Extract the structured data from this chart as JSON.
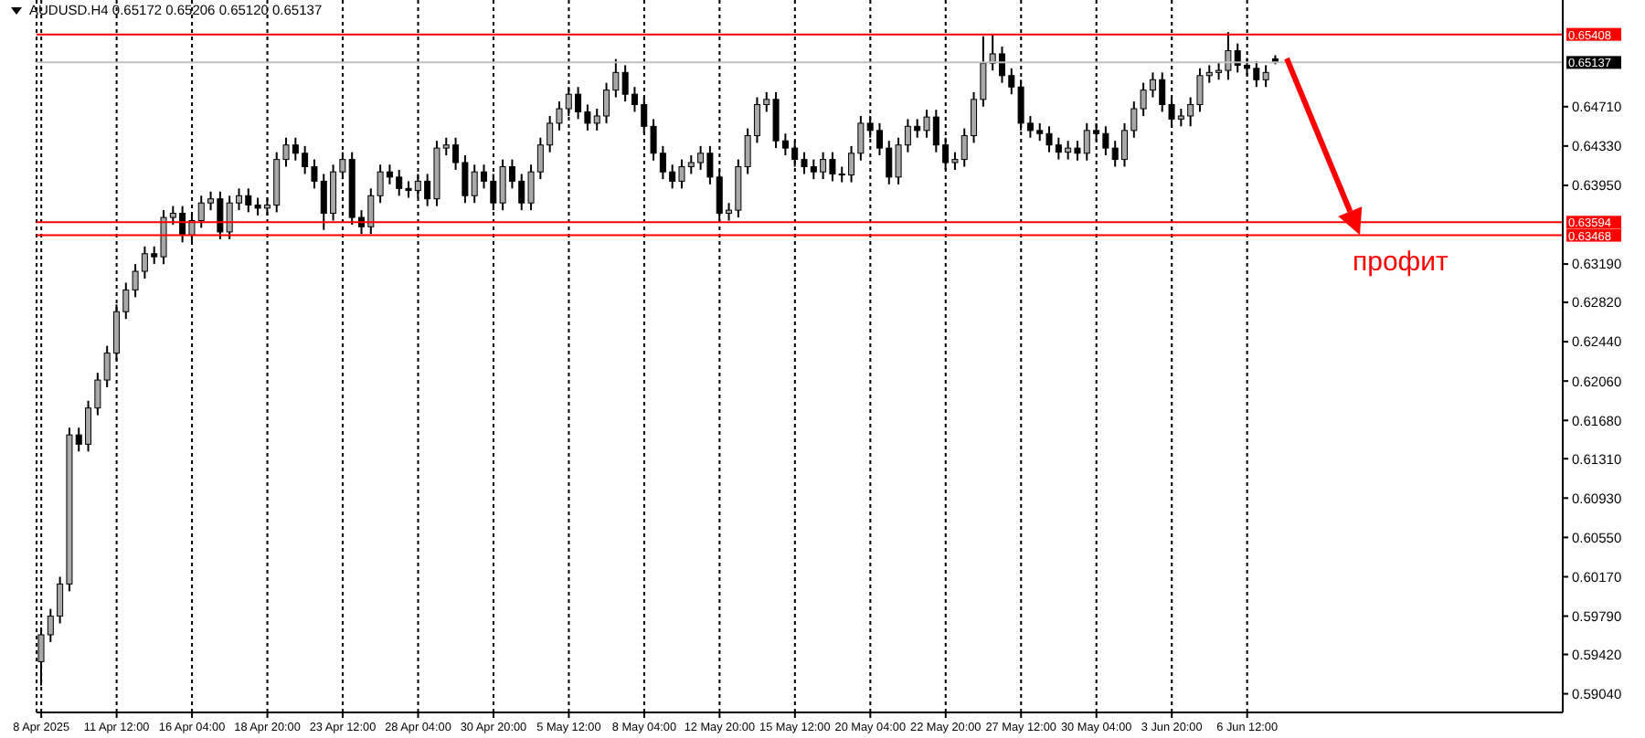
{
  "chart_data": {
    "type": "candlestick",
    "title": "AUDUSD.H4 0.65172 0.65206 0.65120 0.65137",
    "categories": [
      "8 Apr 2025",
      null,
      null,
      null,
      null,
      null,
      null,
      null,
      "11 Apr 12:00",
      null,
      null,
      null,
      null,
      null,
      null,
      null,
      "16 Apr 04:00",
      null,
      null,
      null,
      null,
      null,
      null,
      null,
      "18 Apr 20:00",
      null,
      null,
      null,
      null,
      null,
      null,
      null,
      "23 Apr 12:00",
      null,
      null,
      null,
      null,
      null,
      null,
      null,
      "28 Apr 04:00",
      null,
      null,
      null,
      null,
      null,
      null,
      null,
      "30 Apr 20:00",
      null,
      null,
      null,
      null,
      null,
      null,
      null,
      "5 May 12:00",
      null,
      null,
      null,
      null,
      null,
      null,
      null,
      "8 May 04:00",
      null,
      null,
      null,
      null,
      null,
      null,
      null,
      "12 May 20:00",
      null,
      null,
      null,
      null,
      null,
      null,
      null,
      "15 May 12:00",
      null,
      null,
      null,
      null,
      null,
      null,
      null,
      "20 May 04:00",
      null,
      null,
      null,
      null,
      null,
      null,
      null,
      "22 May 20:00",
      null,
      null,
      null,
      null,
      null,
      null,
      null,
      "27 May 12:00",
      null,
      null,
      null,
      null,
      null,
      null,
      null,
      "30 May 04:00",
      null,
      null,
      null,
      null,
      null,
      null,
      null,
      "3 Jun 20:00",
      null,
      null,
      null,
      null,
      null,
      null,
      null,
      "6 Jun 12:00",
      null,
      null,
      null,
      null,
      null,
      null,
      null,
      null,
      null,
      null,
      null,
      null,
      null,
      null,
      null,
      null,
      null,
      null,
      null,
      null,
      null,
      null,
      null,
      null,
      null,
      null,
      null,
      null,
      null,
      null,
      null,
      null,
      null
    ],
    "ohlc": [
      [
        0.5935,
        0.5968,
        0.5912,
        0.5961
      ],
      [
        0.5961,
        0.5986,
        0.5954,
        0.5979
      ],
      [
        0.5979,
        0.6017,
        0.5972,
        0.601
      ],
      [
        0.601,
        0.6161,
        0.6003,
        0.6154
      ],
      [
        0.6154,
        0.6161,
        0.6138,
        0.6145
      ],
      [
        0.6145,
        0.6187,
        0.6138,
        0.618
      ],
      [
        0.618,
        0.6214,
        0.6173,
        0.6207
      ],
      [
        0.6207,
        0.624,
        0.62,
        0.6233
      ],
      [
        0.6233,
        0.628,
        0.6226,
        0.6273
      ],
      [
        0.6273,
        0.6301,
        0.6266,
        0.6294
      ],
      [
        0.6294,
        0.6319,
        0.6287,
        0.6312
      ],
      [
        0.6312,
        0.6336,
        0.6305,
        0.6329
      ],
      [
        0.6329,
        0.6336,
        0.6319,
        0.6326
      ],
      [
        0.6326,
        0.6371,
        0.6319,
        0.6364
      ],
      [
        0.6364,
        0.6375,
        0.6357,
        0.6368
      ],
      [
        0.6368,
        0.6375,
        0.634,
        0.6347
      ],
      [
        0.6347,
        0.6368,
        0.634,
        0.6361
      ],
      [
        0.6361,
        0.6385,
        0.6354,
        0.6378
      ],
      [
        0.6378,
        0.6389,
        0.6371,
        0.6382
      ],
      [
        0.6382,
        0.6389,
        0.6343,
        0.635
      ],
      [
        0.635,
        0.6385,
        0.6343,
        0.6378
      ],
      [
        0.6378,
        0.6392,
        0.6371,
        0.6385
      ],
      [
        0.6385,
        0.6392,
        0.6369,
        0.6376
      ],
      [
        0.6376,
        0.6383,
        0.6366,
        0.6373
      ],
      [
        0.6373,
        0.6383,
        0.6366,
        0.6376
      ],
      [
        0.6376,
        0.6427,
        0.6369,
        0.642
      ],
      [
        0.642,
        0.6441,
        0.6413,
        0.6434
      ],
      [
        0.6434,
        0.6441,
        0.6419,
        0.6426
      ],
      [
        0.6426,
        0.6433,
        0.6406,
        0.6413
      ],
      [
        0.6413,
        0.642,
        0.6392,
        0.6399
      ],
      [
        0.6399,
        0.6406,
        0.6352,
        0.6368
      ],
      [
        0.6368,
        0.6415,
        0.6361,
        0.6408
      ],
      [
        0.6408,
        0.6427,
        0.6401,
        0.642
      ],
      [
        0.642,
        0.6427,
        0.6357,
        0.6364
      ],
      [
        0.6364,
        0.6371,
        0.6348,
        0.6355
      ],
      [
        0.6355,
        0.6392,
        0.6348,
        0.6385
      ],
      [
        0.6385,
        0.6415,
        0.6378,
        0.6408
      ],
      [
        0.6408,
        0.6415,
        0.6396,
        0.6403
      ],
      [
        0.6403,
        0.641,
        0.6385,
        0.6392
      ],
      [
        0.6392,
        0.6399,
        0.6383,
        0.639
      ],
      [
        0.639,
        0.6406,
        0.6383,
        0.6399
      ],
      [
        0.6399,
        0.6406,
        0.6375,
        0.6382
      ],
      [
        0.6382,
        0.6438,
        0.6375,
        0.6431
      ],
      [
        0.6431,
        0.6441,
        0.6424,
        0.6434
      ],
      [
        0.6434,
        0.6441,
        0.641,
        0.6417
      ],
      [
        0.6417,
        0.6424,
        0.6378,
        0.6385
      ],
      [
        0.6385,
        0.6415,
        0.6378,
        0.6408
      ],
      [
        0.6408,
        0.6415,
        0.6392,
        0.6399
      ],
      [
        0.6399,
        0.6406,
        0.6371,
        0.6378
      ],
      [
        0.6378,
        0.642,
        0.6371,
        0.6413
      ],
      [
        0.6413,
        0.642,
        0.6392,
        0.6399
      ],
      [
        0.6399,
        0.6406,
        0.6371,
        0.6378
      ],
      [
        0.6378,
        0.6415,
        0.6371,
        0.6408
      ],
      [
        0.6408,
        0.6441,
        0.6401,
        0.6434
      ],
      [
        0.6434,
        0.6462,
        0.6427,
        0.6455
      ],
      [
        0.6455,
        0.6476,
        0.6448,
        0.6469
      ],
      [
        0.6469,
        0.649,
        0.6462,
        0.6483
      ],
      [
        0.6483,
        0.649,
        0.6459,
        0.6466
      ],
      [
        0.6466,
        0.6473,
        0.6448,
        0.6455
      ],
      [
        0.6455,
        0.6469,
        0.6448,
        0.6462
      ],
      [
        0.6462,
        0.6494,
        0.6455,
        0.6487
      ],
      [
        0.6487,
        0.6517,
        0.648,
        0.6504
      ],
      [
        0.6504,
        0.6511,
        0.6476,
        0.6483
      ],
      [
        0.6483,
        0.649,
        0.6466,
        0.6473
      ],
      [
        0.6473,
        0.648,
        0.6445,
        0.6452
      ],
      [
        0.6452,
        0.6459,
        0.6419,
        0.6426
      ],
      [
        0.6426,
        0.6433,
        0.6401,
        0.6408
      ],
      [
        0.6408,
        0.6415,
        0.6392,
        0.6399
      ],
      [
        0.6399,
        0.642,
        0.6392,
        0.6413
      ],
      [
        0.6413,
        0.6424,
        0.6406,
        0.6417
      ],
      [
        0.6417,
        0.6433,
        0.641,
        0.6426
      ],
      [
        0.6426,
        0.6433,
        0.6396,
        0.6403
      ],
      [
        0.6403,
        0.641,
        0.6361,
        0.6368
      ],
      [
        0.6368,
        0.6378,
        0.6361,
        0.6371
      ],
      [
        0.6371,
        0.642,
        0.6364,
        0.6413
      ],
      [
        0.6413,
        0.645,
        0.6406,
        0.6443
      ],
      [
        0.6443,
        0.648,
        0.6436,
        0.6473
      ],
      [
        0.6473,
        0.6485,
        0.6466,
        0.6478
      ],
      [
        0.6478,
        0.6485,
        0.6431,
        0.6438
      ],
      [
        0.6438,
        0.6445,
        0.6424,
        0.6431
      ],
      [
        0.6431,
        0.6438,
        0.6413,
        0.642
      ],
      [
        0.642,
        0.6427,
        0.6406,
        0.6413
      ],
      [
        0.6413,
        0.642,
        0.6401,
        0.6408
      ],
      [
        0.6408,
        0.6427,
        0.6401,
        0.642
      ],
      [
        0.642,
        0.6427,
        0.6399,
        0.6406
      ],
      [
        0.6406,
        0.6413,
        0.6398,
        0.6405
      ],
      [
        0.6405,
        0.6433,
        0.6398,
        0.6426
      ],
      [
        0.6426,
        0.6462,
        0.6419,
        0.6455
      ],
      [
        0.6455,
        0.6462,
        0.6441,
        0.6448
      ],
      [
        0.6448,
        0.6455,
        0.6424,
        0.6431
      ],
      [
        0.6431,
        0.6438,
        0.6396,
        0.6403
      ],
      [
        0.6403,
        0.6441,
        0.6396,
        0.6434
      ],
      [
        0.6434,
        0.6459,
        0.6427,
        0.6452
      ],
      [
        0.6452,
        0.6459,
        0.6441,
        0.6448
      ],
      [
        0.6448,
        0.6468,
        0.6441,
        0.6461
      ],
      [
        0.6461,
        0.6468,
        0.6427,
        0.6434
      ],
      [
        0.6434,
        0.6441,
        0.641,
        0.6417
      ],
      [
        0.6417,
        0.6427,
        0.641,
        0.642
      ],
      [
        0.642,
        0.645,
        0.6413,
        0.6443
      ],
      [
        0.6443,
        0.6485,
        0.6436,
        0.6478
      ],
      [
        0.6478,
        0.6539,
        0.6471,
        0.6513
      ],
      [
        0.6513,
        0.6541,
        0.6506,
        0.6522
      ],
      [
        0.6522,
        0.6529,
        0.6494,
        0.6501
      ],
      [
        0.6501,
        0.6508,
        0.6483,
        0.649
      ],
      [
        0.649,
        0.6497,
        0.6448,
        0.6455
      ],
      [
        0.6455,
        0.6462,
        0.6441,
        0.6448
      ],
      [
        0.6448,
        0.6455,
        0.6438,
        0.6445
      ],
      [
        0.6445,
        0.6452,
        0.6427,
        0.6434
      ],
      [
        0.6434,
        0.6441,
        0.642,
        0.6427
      ],
      [
        0.6427,
        0.6438,
        0.642,
        0.6431
      ],
      [
        0.6431,
        0.6438,
        0.6419,
        0.6426
      ],
      [
        0.6426,
        0.6455,
        0.6419,
        0.6448
      ],
      [
        0.6448,
        0.6455,
        0.6438,
        0.6445
      ],
      [
        0.6445,
        0.6452,
        0.6424,
        0.6431
      ],
      [
        0.6431,
        0.6438,
        0.6413,
        0.642
      ],
      [
        0.642,
        0.6455,
        0.6413,
        0.6448
      ],
      [
        0.6448,
        0.6476,
        0.6441,
        0.6469
      ],
      [
        0.6469,
        0.6494,
        0.6462,
        0.6487
      ],
      [
        0.6487,
        0.6504,
        0.648,
        0.6497
      ],
      [
        0.6497,
        0.6504,
        0.6466,
        0.6473
      ],
      [
        0.6473,
        0.648,
        0.6452,
        0.6459
      ],
      [
        0.6459,
        0.6469,
        0.6452,
        0.6462
      ],
      [
        0.6462,
        0.648,
        0.6452,
        0.6473
      ],
      [
        0.6473,
        0.6508,
        0.6466,
        0.6501
      ],
      [
        0.6501,
        0.6511,
        0.6494,
        0.6504
      ],
      [
        0.6504,
        0.6513,
        0.6497,
        0.6506
      ],
      [
        0.6506,
        0.6543,
        0.6497,
        0.6525
      ],
      [
        0.6525,
        0.6532,
        0.6504,
        0.6511
      ],
      [
        0.6511,
        0.6518,
        0.6501,
        0.6508
      ],
      [
        0.6508,
        0.6515,
        0.649,
        0.6497
      ],
      [
        0.6497,
        0.6511,
        0.649,
        0.6504
      ],
      [
        0.65172,
        0.65206,
        0.6512,
        0.65137
      ],
      null,
      null,
      null,
      null,
      null,
      null,
      null,
      null,
      null,
      null,
      null,
      null,
      null,
      null,
      null,
      null,
      null,
      null,
      null,
      null,
      null,
      null,
      null,
      null,
      null,
      null,
      null,
      null,
      null,
      null
    ],
    "ylim": [
      0.5886,
      0.6574
    ],
    "yticks": [
      {
        "value": 0.5904,
        "label": "0.59040"
      },
      {
        "value": 0.5942,
        "label": "0.59420"
      },
      {
        "value": 0.5979,
        "label": "0.59790"
      },
      {
        "value": 0.6017,
        "label": "0.60170"
      },
      {
        "value": 0.6055,
        "label": "0.60550"
      },
      {
        "value": 0.6093,
        "label": "0.60930"
      },
      {
        "value": 0.6131,
        "label": "0.61310"
      },
      {
        "value": 0.6168,
        "label": "0.61680"
      },
      {
        "value": 0.6206,
        "label": "0.62060"
      },
      {
        "value": 0.6244,
        "label": "0.62440"
      },
      {
        "value": 0.6282,
        "label": "0.62820"
      },
      {
        "value": 0.6319,
        "label": "0.63190"
      },
      {
        "value": 0.6395,
        "label": "0.63950"
      },
      {
        "value": 0.6433,
        "label": "0.64330"
      },
      {
        "value": 0.6471,
        "label": "0.64710"
      }
    ],
    "ref_lines": [
      {
        "axis": "y",
        "value": 0.65408,
        "label": "0.65408",
        "color": "#ff0000"
      },
      {
        "axis": "y",
        "value": 0.65137,
        "label": "0.65137",
        "color": "#c0c0c0"
      },
      {
        "axis": "y",
        "value": 0.63594,
        "label": "0.63594",
        "color": "#ff0000"
      },
      {
        "axis": "y",
        "value": 0.63468,
        "label": "0.63468",
        "color": "#ff0000"
      }
    ],
    "annotations": [
      {
        "text": "профит",
        "y": 0.6347
      }
    ],
    "grid": "x"
  }
}
